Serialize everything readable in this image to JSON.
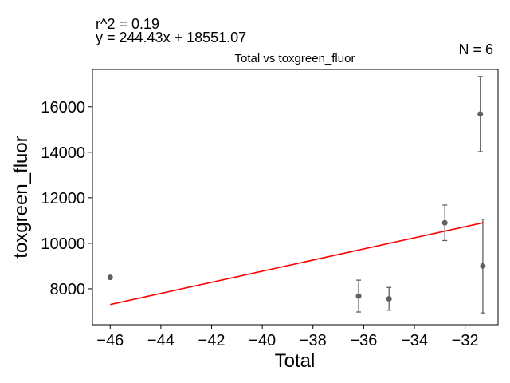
{
  "annotations": {
    "r2": "r^2 = 0.19",
    "equation": "y = 244.43x + 18551.07",
    "n": "N = 6"
  },
  "chart_data": {
    "type": "scatter",
    "title": "Total vs toxgreen_fluor",
    "xlabel": "Total",
    "ylabel": "toxgreen_fluor",
    "xlim": [
      -46.7,
      -30.7
    ],
    "ylim": [
      6420,
      17640
    ],
    "x_ticks": [
      -46,
      -44,
      -42,
      -40,
      -38,
      -36,
      -34,
      -32
    ],
    "x_tick_labels": [
      "−46",
      "−44",
      "−42",
      "−40",
      "−38",
      "−36",
      "−34",
      "−32"
    ],
    "y_ticks": [
      8000,
      10000,
      12000,
      14000,
      16000
    ],
    "y_tick_labels": [
      "8000",
      "10000",
      "12000",
      "14000",
      "16000"
    ],
    "grid": false,
    "colors": {
      "points": "#606060",
      "errorbars": "#606060",
      "fit_line": "#ff0000"
    },
    "points": [
      {
        "x": -46.0,
        "y": 8500,
        "err": 0
      },
      {
        "x": -36.2,
        "y": 7680,
        "err": 700
      },
      {
        "x": -35.0,
        "y": 7560,
        "err": 500
      },
      {
        "x": -32.8,
        "y": 10900,
        "err": 780
      },
      {
        "x": -31.4,
        "y": 15680,
        "err": 1650
      },
      {
        "x": -31.3,
        "y": 9000,
        "err": 2060
      }
    ],
    "fit": {
      "slope": 244.43,
      "intercept": 18551.07,
      "x_range": [
        -46.0,
        -31.3
      ]
    }
  }
}
